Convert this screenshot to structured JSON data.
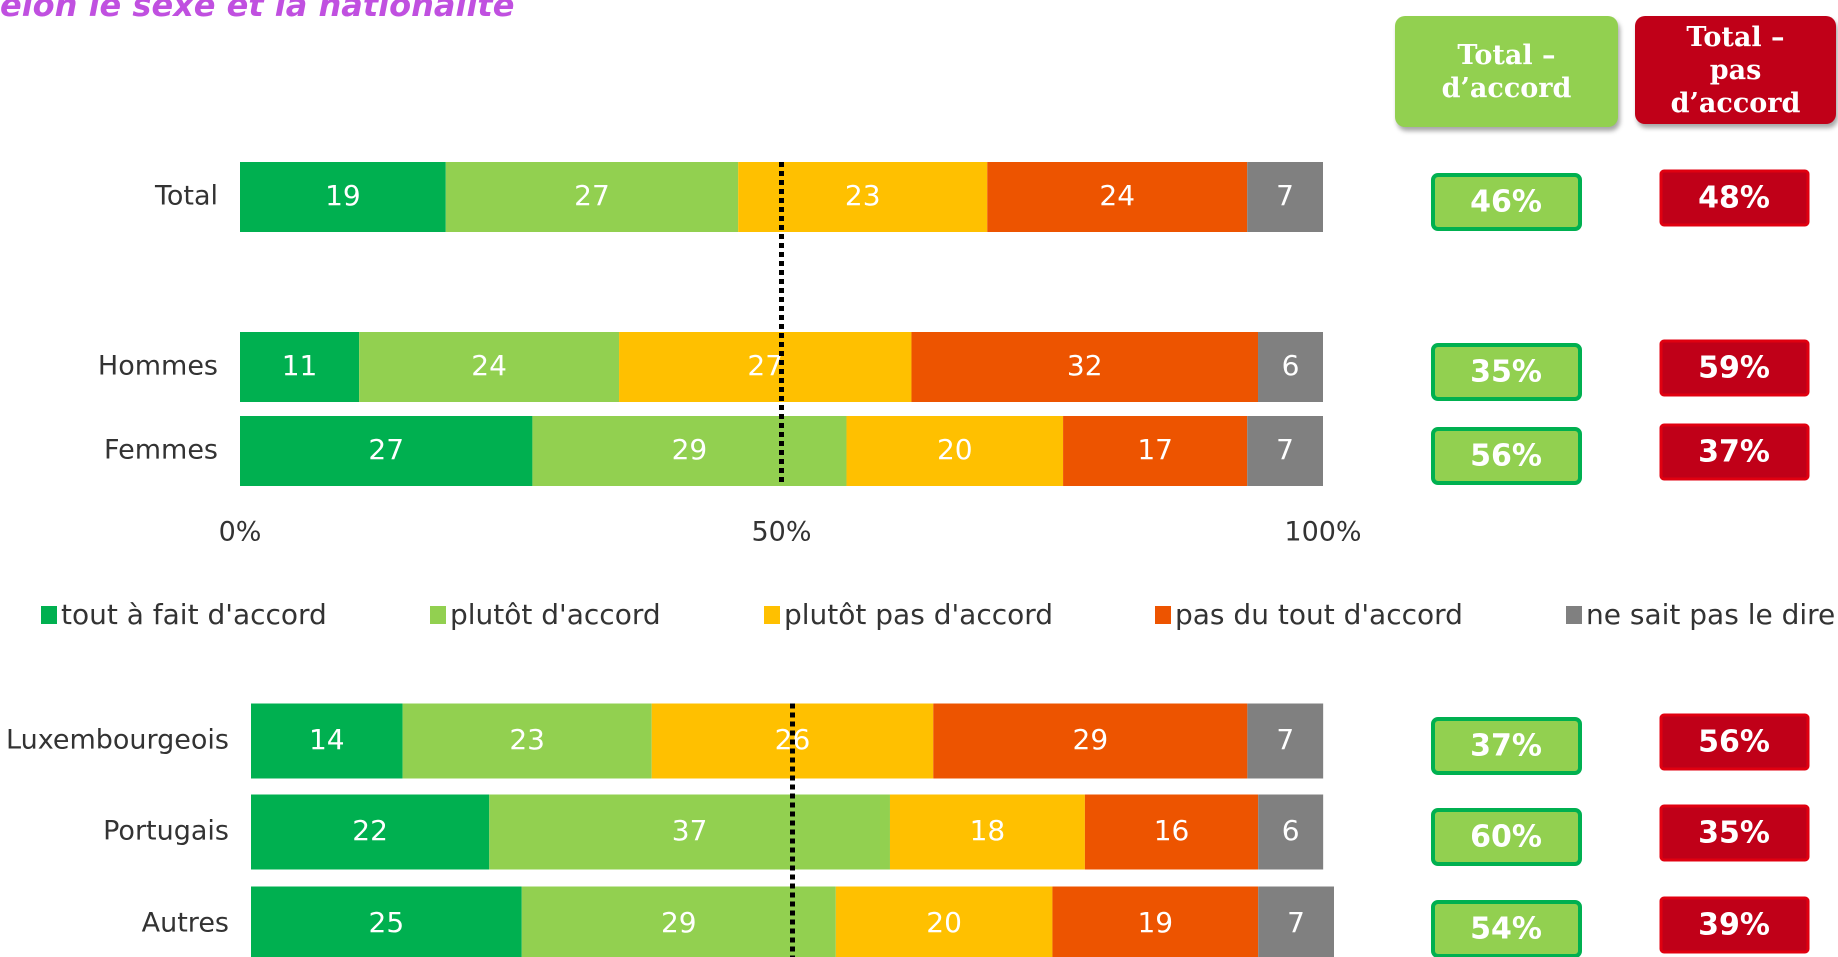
{
  "title": "elon le sexe et la nationalité",
  "total_headers": [
    "Total – d’accord",
    "Total – pas d’accord"
  ],
  "chart_data": [
    {
      "type": "bar",
      "orientation": "horizontal",
      "stacked": true,
      "categories": [
        "Total",
        "Hommes",
        "Femmes"
      ],
      "series": [
        {
          "name": "tout à fait d'accord",
          "color": "#00b050",
          "values": [
            19,
            11,
            27
          ]
        },
        {
          "name": "plutôt d'accord",
          "color": "#92d050",
          "values": [
            27,
            24,
            29
          ]
        },
        {
          "name": "plutôt pas d'accord",
          "color": "#ffc000",
          "values": [
            23,
            27,
            20
          ]
        },
        {
          "name": "pas du tout d'accord",
          "color": "#ed5400",
          "values": [
            24,
            32,
            17
          ]
        },
        {
          "name": "ne sait pas le dire",
          "color": "#808080",
          "values": [
            7,
            6,
            7
          ]
        }
      ],
      "xlim": [
        0,
        100
      ],
      "xticks": [
        {
          "value": 0,
          "label": "0%"
        },
        {
          "value": 50,
          "label": "50%"
        },
        {
          "value": 100,
          "label": "100%"
        }
      ],
      "reference_line": 50,
      "agree_totals": [
        46,
        35,
        56
      ],
      "agree_total_labels": [
        "46%",
        "35%",
        "56%"
      ],
      "disagree_totals": [
        48,
        59,
        37
      ],
      "disagree_total_labels": [
        "48%",
        "59%",
        "37%"
      ]
    },
    {
      "type": "bar",
      "orientation": "horizontal",
      "stacked": true,
      "categories": [
        "Luxembourgeois",
        "Portugais",
        "Autres"
      ],
      "series": [
        {
          "values": [
            14,
            22,
            25
          ]
        },
        {
          "values": [
            23,
            37,
            29
          ]
        },
        {
          "values": [
            26,
            18,
            20
          ]
        },
        {
          "values": [
            29,
            16,
            19
          ]
        },
        {
          "values": [
            7,
            6,
            7
          ]
        }
      ],
      "xlim": [
        0,
        100
      ],
      "reference_line": 50,
      "agree_totals": [
        37,
        60,
        54
      ],
      "agree_total_labels": [
        "37%",
        "60%",
        "54%"
      ],
      "disagree_totals": [
        56,
        35,
        39
      ],
      "disagree_total_labels": [
        "56%",
        "35%",
        "39%"
      ]
    }
  ]
}
